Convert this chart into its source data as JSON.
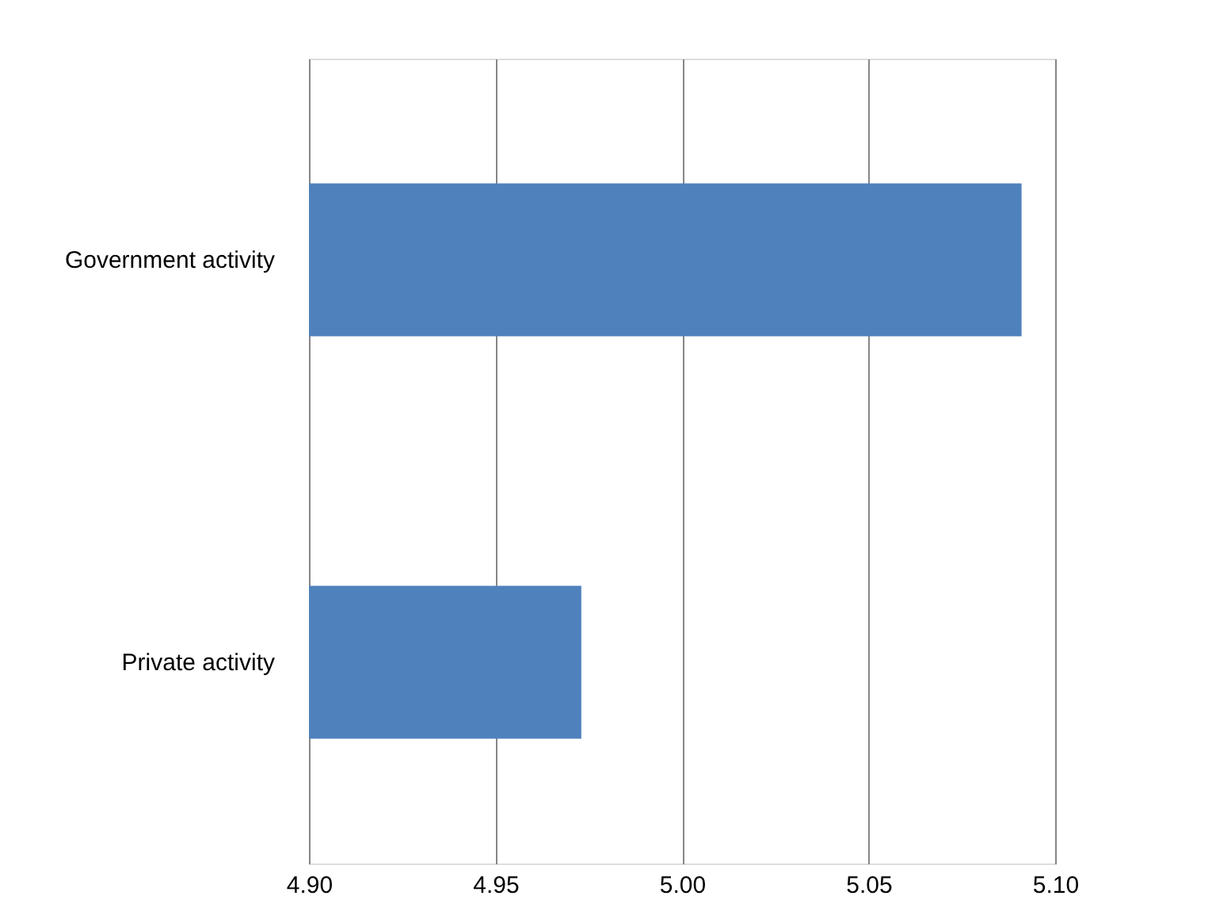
{
  "chart_data": {
    "type": "bar",
    "orientation": "horizontal",
    "categories": [
      "Government activity",
      "Private activity"
    ],
    "values": [
      5.091,
      4.973
    ],
    "color": "#4f81bd",
    "xlim": [
      4.9,
      5.1
    ],
    "xticks": [
      {
        "value": 4.9,
        "label": "4.90"
      },
      {
        "value": 4.95,
        "label": "4.95"
      },
      {
        "value": 5.0,
        "label": "5.00"
      },
      {
        "value": 5.05,
        "label": "5.05"
      },
      {
        "value": 5.1,
        "label": "5.10"
      }
    ],
    "grid": "x"
  }
}
